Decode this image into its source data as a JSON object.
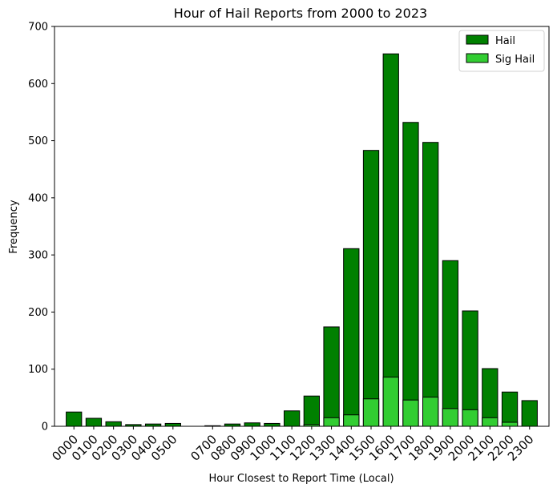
{
  "chart_data": {
    "type": "bar",
    "stacked": false,
    "overlay": true,
    "title": "Hour of Hail Reports from 2000 to 2023",
    "xlabel": "Hour Closest to Report Time (Local)",
    "ylabel": "Frequency",
    "ylim": [
      0,
      700
    ],
    "yticks": [
      0,
      100,
      200,
      300,
      400,
      500,
      600,
      700
    ],
    "grid": false,
    "legend_placement": "top-right",
    "x": [
      0,
      1,
      2,
      3,
      4,
      5,
      7,
      8,
      9,
      10,
      11,
      12,
      13,
      14,
      15,
      16,
      17,
      18,
      19,
      20,
      21,
      22,
      23
    ],
    "categories": [
      "0000",
      "0100",
      "0200",
      "0300",
      "0400",
      "0500",
      "0700",
      "0800",
      "0900",
      "1000",
      "1100",
      "1200",
      "1300",
      "1400",
      "1500",
      "1600",
      "1700",
      "1800",
      "1900",
      "2000",
      "2100",
      "2200",
      "2300"
    ],
    "series": [
      {
        "name": "Hail",
        "color": "#008000",
        "values": [
          25,
          14,
          8,
          3,
          4,
          5,
          1,
          4,
          6,
          5,
          27,
          53,
          174,
          311,
          483,
          652,
          532,
          497,
          290,
          202,
          101,
          60,
          45
        ]
      },
      {
        "name": "Sig Hail",
        "color": "#32cd32",
        "values": [
          0,
          0,
          0,
          0,
          0,
          0,
          0,
          0,
          0,
          0,
          0,
          3,
          15,
          20,
          48,
          86,
          46,
          51,
          31,
          29,
          15,
          7,
          0
        ]
      }
    ]
  }
}
